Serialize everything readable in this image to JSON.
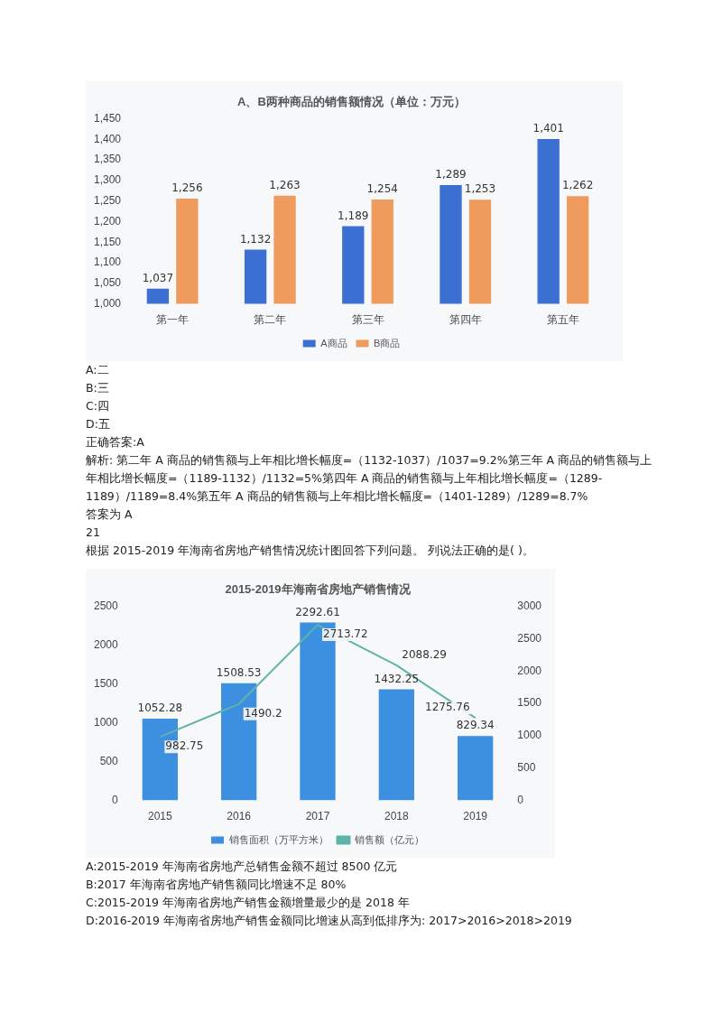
{
  "chart_data": [
    {
      "type": "bar",
      "title": "A、B两种商品的销售额情况（单位：万元）",
      "categories": [
        "第一年",
        "第二年",
        "第三年",
        "第四年",
        "第五年"
      ],
      "series": [
        {
          "name": "A商品",
          "color": "#3b6fd1",
          "values": [
            1037,
            1132,
            1189,
            1289,
            1401
          ],
          "value_labels": [
            "1,037",
            "1,132",
            "1,189",
            "1,289",
            "1,401"
          ]
        },
        {
          "name": "B商品",
          "color": "#ef9b5e",
          "values": [
            1256,
            1263,
            1254,
            1253,
            1262
          ],
          "value_labels": [
            "1,256",
            "1,263",
            "1,254",
            "1,253",
            "1,262"
          ]
        }
      ],
      "ylim": [
        1000,
        1450
      ],
      "yticks": [
        {
          "value": 1000,
          "label": "1,000"
        },
        {
          "value": 1050,
          "label": "1,050"
        },
        {
          "value": 1100,
          "label": "1,100"
        },
        {
          "value": 1150,
          "label": "1,150"
        },
        {
          "value": 1200,
          "label": "1,200"
        },
        {
          "value": 1250,
          "label": "1,250"
        },
        {
          "value": 1300,
          "label": "1,300"
        },
        {
          "value": 1350,
          "label": "1,350"
        },
        {
          "value": 1400,
          "label": "1,400"
        },
        {
          "value": 1450,
          "label": "1,450"
        }
      ],
      "legend": "bottom",
      "grid": false,
      "annotations": [
        "A:二",
        "B:三",
        "C:四",
        "D:五",
        "正确答案:A",
        "解析: 第二年 A 商品的销售额与上年相比增长幅度=（1132-1037）/1037=9.2%第三年 A 商品的销售额与上年相比增长幅度=（1189-1132）/1132=5%第四年 A 商品的销售额与上年相比增长幅度=（1289-1189）/1189=8.4%第五年 A 商品的销售额与上年相比增长幅度=（1401-1289）/1289=8.7%",
        "答案为 A",
        "21",
        "根据 2015-2019 年海南省房地产销售情况统计图回答下列问题。 列说法正确的是( )。"
      ]
    },
    {
      "type": "bar",
      "title": "2015-2019年海南省房地产销售情况",
      "categories": [
        "2015",
        "2016",
        "2017",
        "2018",
        "2019"
      ],
      "series": [
        {
          "name": "销售面积（万平方米）",
          "color": "#3d8fe0",
          "values": [
            1052.28,
            1508.53,
            2292.61,
            1432.25,
            829.34
          ]
        },
        {
          "name": "销售额（亿元）",
          "type": "line",
          "axis": "y2",
          "color": "#5fb3a9",
          "values": [
            982.75,
            1490.2,
            2713.72,
            2088.29,
            1275.76
          ]
        }
      ],
      "ylim": [
        0,
        2500
      ],
      "yticks": [
        0,
        500,
        1000,
        1500,
        2000,
        2500
      ],
      "y2lim": [
        0,
        3000
      ],
      "y2ticks": [
        0,
        500,
        1000,
        1500,
        2000,
        2500,
        3000
      ],
      "legend": "bottom",
      "grid": false,
      "marker": "none",
      "data_labels": true,
      "annotations": [
        "A:2015-2019 年海南省房地产总销售金额不超过 8500 亿元",
        "B:2017 年海南省房地产销售额同比增速不足 80%",
        "C:2015-2019 年海南省房地产销售金额增量最少的是 2018 年",
        "D:2016-2019 年海南省房地产销售金额同比增速从高到低排序为: 2017>2016>2018>2019"
      ]
    }
  ]
}
